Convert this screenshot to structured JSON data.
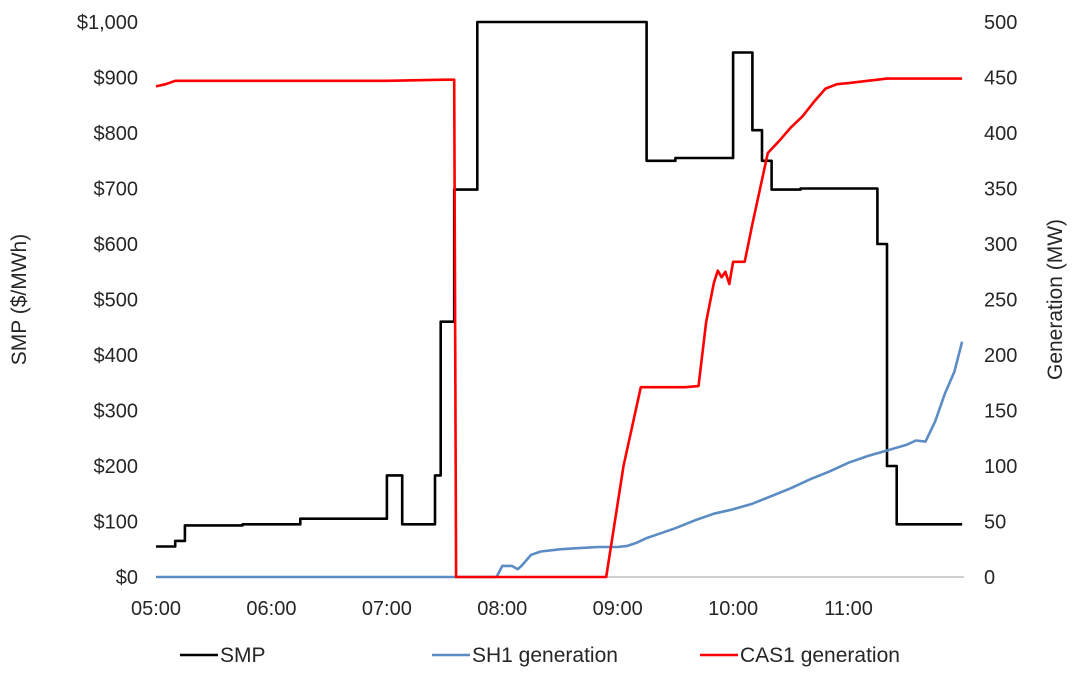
{
  "chart_data": {
    "type": "line",
    "x_axis": {
      "ticks": [
        "05:00",
        "06:00",
        "07:00",
        "08:00",
        "09:00",
        "10:00",
        "11:00"
      ],
      "range": [
        "05:00",
        "12:00"
      ]
    },
    "y_left": {
      "label": "SMP ($/MWh)",
      "ticks": [
        "$0",
        "$100",
        "$200",
        "$300",
        "$400",
        "$500",
        "$600",
        "$700",
        "$800",
        "$900",
        "$1,000"
      ],
      "range": [
        0,
        1000
      ]
    },
    "y_right": {
      "label": "Generation (MW)",
      "ticks": [
        "0",
        "50",
        "100",
        "150",
        "200",
        "250",
        "300",
        "350",
        "400",
        "450",
        "500"
      ],
      "range": [
        0,
        500
      ]
    },
    "grid": false,
    "legend_position": "bottom",
    "series": [
      {
        "name": "SMP",
        "axis": "left",
        "color": "#000000",
        "step": true,
        "points": [
          [
            "05:00",
            55
          ],
          [
            "05:10",
            65
          ],
          [
            "05:15",
            93
          ],
          [
            "05:45",
            95
          ],
          [
            "06:15",
            105
          ],
          [
            "07:00",
            183
          ],
          [
            "07:08",
            95
          ],
          [
            "07:25",
            183
          ],
          [
            "07:28",
            460
          ],
          [
            "07:35",
            698
          ],
          [
            "07:47",
            1000
          ],
          [
            "09:15",
            750
          ],
          [
            "09:30",
            755
          ],
          [
            "10:00",
            945
          ],
          [
            "10:10",
            805
          ],
          [
            "10:15",
            750
          ],
          [
            "10:20",
            698
          ],
          [
            "10:35",
            700
          ],
          [
            "11:15",
            600
          ],
          [
            "11:20",
            200
          ],
          [
            "11:25",
            95
          ],
          [
            "11:59",
            95
          ]
        ]
      },
      {
        "name": "SH1 generation",
        "axis": "right",
        "color": "#5B8CC4",
        "step": false,
        "points": [
          [
            "05:00",
            0
          ],
          [
            "07:57",
            0
          ],
          [
            "08:00",
            10
          ],
          [
            "08:05",
            10
          ],
          [
            "08:08",
            7
          ],
          [
            "08:10",
            10
          ],
          [
            "08:15",
            20
          ],
          [
            "08:20",
            23
          ],
          [
            "08:30",
            25
          ],
          [
            "08:40",
            26
          ],
          [
            "08:50",
            27
          ],
          [
            "09:00",
            27
          ],
          [
            "09:05",
            28
          ],
          [
            "09:10",
            31
          ],
          [
            "09:15",
            35
          ],
          [
            "09:20",
            38
          ],
          [
            "09:30",
            44
          ],
          [
            "09:40",
            51
          ],
          [
            "09:50",
            57
          ],
          [
            "10:00",
            61
          ],
          [
            "10:10",
            66
          ],
          [
            "10:20",
            73
          ],
          [
            "10:30",
            80
          ],
          [
            "10:40",
            88
          ],
          [
            "10:50",
            95
          ],
          [
            "11:00",
            103
          ],
          [
            "11:10",
            109
          ],
          [
            "11:20",
            114
          ],
          [
            "11:30",
            119
          ],
          [
            "11:35",
            123
          ],
          [
            "11:40",
            122
          ],
          [
            "11:45",
            140
          ],
          [
            "11:50",
            165
          ],
          [
            "11:55",
            185
          ],
          [
            "11:59",
            212
          ]
        ]
      },
      {
        "name": "CAS1 generation",
        "axis": "right",
        "color": "#FF0000",
        "step": false,
        "points": [
          [
            "05:00",
            442
          ],
          [
            "05:05",
            444
          ],
          [
            "05:10",
            447
          ],
          [
            "05:30",
            447
          ],
          [
            "06:00",
            447
          ],
          [
            "06:30",
            447
          ],
          [
            "07:00",
            447
          ],
          [
            "07:30",
            448
          ],
          [
            "07:35",
            448
          ],
          [
            "07:36",
            0
          ],
          [
            "08:54",
            0
          ],
          [
            "09:03",
            100
          ],
          [
            "09:12",
            171
          ],
          [
            "09:20",
            171
          ],
          [
            "09:35",
            171
          ],
          [
            "09:42",
            172
          ],
          [
            "09:46",
            230
          ],
          [
            "09:50",
            265
          ],
          [
            "09:52",
            276
          ],
          [
            "09:54",
            270
          ],
          [
            "09:56",
            275
          ],
          [
            "09:58",
            264
          ],
          [
            "10:00",
            284
          ],
          [
            "10:06",
            284
          ],
          [
            "10:10",
            318
          ],
          [
            "10:14",
            350
          ],
          [
            "10:18",
            382
          ],
          [
            "10:24",
            393
          ],
          [
            "10:30",
            405
          ],
          [
            "10:36",
            415
          ],
          [
            "10:42",
            428
          ],
          [
            "10:48",
            440
          ],
          [
            "10:54",
            444
          ],
          [
            "11:00",
            445
          ],
          [
            "11:10",
            447
          ],
          [
            "11:20",
            449
          ],
          [
            "11:40",
            449
          ],
          [
            "11:59",
            449
          ]
        ]
      }
    ]
  }
}
